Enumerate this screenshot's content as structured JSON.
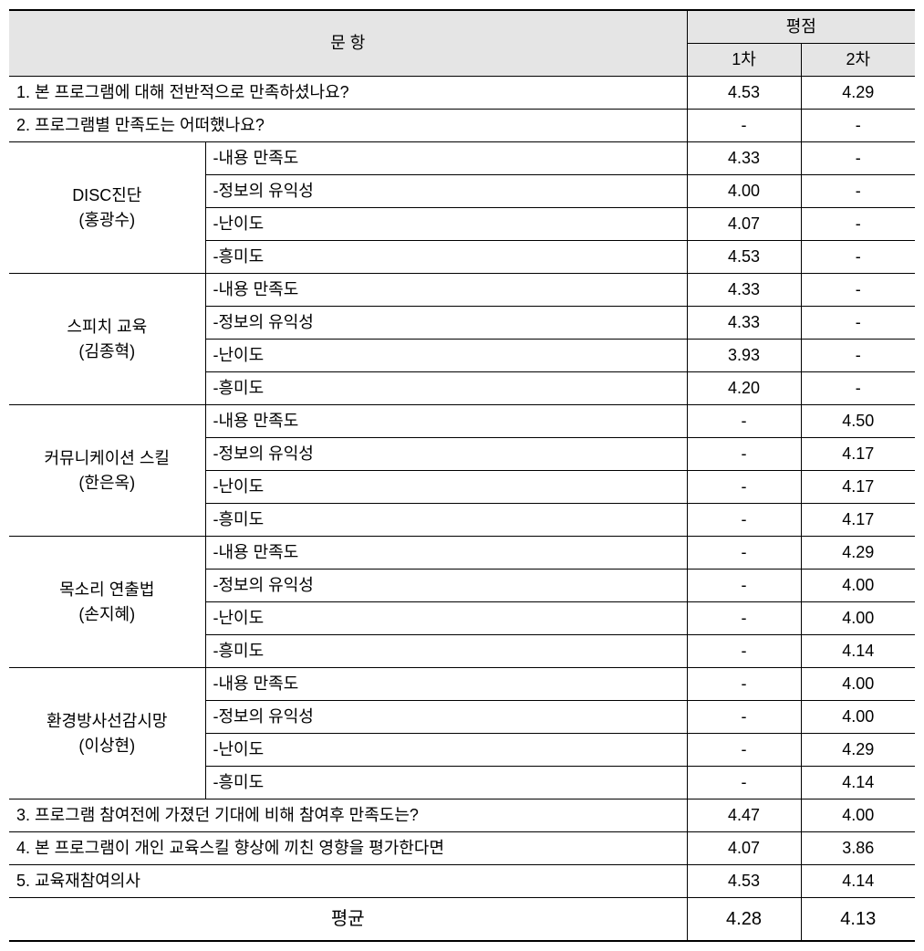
{
  "headers": {
    "question": "문 항",
    "score": "평점",
    "round1": "1차",
    "round2": "2차"
  },
  "q1": {
    "text": "1. 본 프로그램에 대해 전반적으로 만족하셨나요?",
    "r1": "4.53",
    "r2": "4.29"
  },
  "q2": {
    "text": "2. 프로그램별 만족도는 어떠했나요?",
    "r1": "-",
    "r2": "-"
  },
  "groups": [
    {
      "name": "DISC진단",
      "instructor": "(홍광수)",
      "items": [
        {
          "label": "-내용 만족도",
          "r1": "4.33",
          "r2": "-"
        },
        {
          "label": "-정보의 유익성",
          "r1": "4.00",
          "r2": "-"
        },
        {
          "label": "-난이도",
          "r1": "4.07",
          "r2": "-"
        },
        {
          "label": "-흥미도",
          "r1": "4.53",
          "r2": "-"
        }
      ]
    },
    {
      "name": "스피치 교육",
      "instructor": "(김종혁)",
      "items": [
        {
          "label": " -내용 만족도",
          "r1": "4.33",
          "r2": "-"
        },
        {
          "label": "-정보의 유익성",
          "r1": "4.33",
          "r2": "-"
        },
        {
          "label": "-난이도",
          "r1": "3.93",
          "r2": "-"
        },
        {
          "label": "-흥미도",
          "r1": "4.20",
          "r2": "-"
        }
      ]
    },
    {
      "name": "커뮤니케이션 스킬",
      "instructor": "(한은옥)",
      "items": [
        {
          "label": "-내용 만족도",
          "r1": "-",
          "r2": "4.50"
        },
        {
          "label": "-정보의 유익성",
          "r1": "-",
          "r2": "4.17"
        },
        {
          "label": "-난이도",
          "r1": "-",
          "r2": "4.17"
        },
        {
          "label": "-흥미도",
          "r1": "-",
          "r2": "4.17"
        }
      ]
    },
    {
      "name": "목소리 연출법",
      "instructor": "(손지혜)",
      "items": [
        {
          "label": " -내용 만족도",
          "r1": "-",
          "r2": "4.29"
        },
        {
          "label": "-정보의 유익성",
          "r1": "-",
          "r2": "4.00"
        },
        {
          "label": "-난이도",
          "r1": "-",
          "r2": "4.00"
        },
        {
          "label": "-흥미도",
          "r1": "-",
          "r2": "4.14"
        }
      ]
    },
    {
      "name": "환경방사선감시망",
      "instructor": "(이상현)",
      "items": [
        {
          "label": " -내용 만족도",
          "r1": "-",
          "r2": "4.00"
        },
        {
          "label": "-정보의 유익성",
          "r1": "-",
          "r2": "4.00"
        },
        {
          "label": "-난이도",
          "r1": "-",
          "r2": "4.29"
        },
        {
          "label": "-흥미도",
          "r1": "-",
          "r2": "4.14"
        }
      ]
    }
  ],
  "q3": {
    "text": "3. 프로그램 참여전에 가졌던 기대에 비해 참여후 만족도는?",
    "r1": "4.47",
    "r2": "4.00"
  },
  "q4": {
    "text": "4. 본 프로그램이 개인 교육스킬 향상에 끼친 영향을 평가한다면",
    "r1": "4.07",
    "r2": "3.86"
  },
  "q5": {
    "text": "5. 교육재참여의사",
    "r1": "4.53",
    "r2": "4.14"
  },
  "average": {
    "label": "평균",
    "r1": "4.28",
    "r2": "4.13"
  }
}
